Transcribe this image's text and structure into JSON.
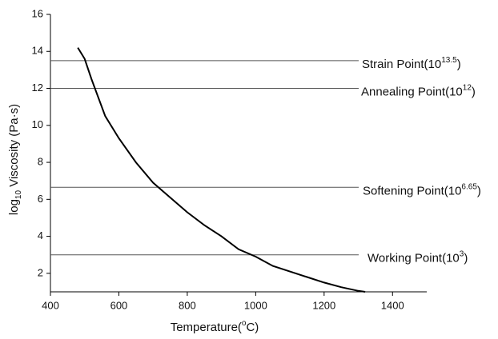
{
  "chart_data": {
    "type": "line",
    "x_label": {
      "text": "Temperature(",
      "sup": "o",
      "end": "C)"
    },
    "y_label": {
      "text": "log",
      "sub": "10",
      "end": " Viscosity (Pa·s)"
    },
    "x": [
      480,
      500,
      520,
      560,
      600,
      650,
      700,
      750,
      800,
      850,
      900,
      950,
      1000,
      1050,
      1100,
      1150,
      1200,
      1250,
      1300,
      1320
    ],
    "series": [
      {
        "name": "Viscosity",
        "color": "#000000",
        "values": [
          14.2,
          13.6,
          12.5,
          10.5,
          9.3,
          8.0,
          6.9,
          6.1,
          5.3,
          4.6,
          4.0,
          3.3,
          2.9,
          2.4,
          2.1,
          1.8,
          1.5,
          1.25,
          1.05,
          1.0
        ]
      }
    ],
    "reference_lines": [
      {
        "value": 13.5,
        "text": "Strain Point(10",
        "sup": "13.5",
        "end": ")"
      },
      {
        "value": 12,
        "text": "Annealing Point(10",
        "sup": "12",
        "end": ")"
      },
      {
        "value": 6.65,
        "text": "Softening Point(10",
        "sup": "6.65",
        "end": ")"
      },
      {
        "value": 3,
        "text": "Working Point(10",
        "sup": "3",
        "end": ")"
      }
    ],
    "reference_color": "#555555",
    "xlim": [
      400,
      1500
    ],
    "xticks": [
      400,
      600,
      800,
      1000,
      1200,
      1400
    ],
    "ylim": [
      1,
      16
    ],
    "yticks": [
      2,
      4,
      6,
      8,
      10,
      12,
      14,
      16
    ],
    "grid": false
  }
}
